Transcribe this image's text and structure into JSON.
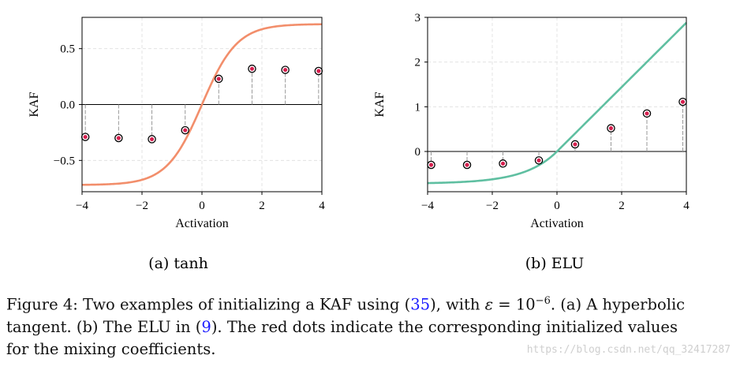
{
  "chart_data": [
    {
      "id": "left",
      "type": "scatter",
      "subcaption": "(a) tanh",
      "xlabel": "Activation",
      "ylabel": "KAF",
      "xlim": [
        -4,
        4
      ],
      "ylim": [
        -0.78,
        0.78
      ],
      "xticks": [
        -4,
        -2,
        0,
        2,
        4
      ],
      "xtick_labels": [
        "−4",
        "−2",
        "0",
        "2",
        "4"
      ],
      "yticks": [
        -0.5,
        0.0,
        0.5
      ],
      "ytick_labels": [
        "−0.5",
        "0.0",
        "0.5"
      ],
      "grid": true,
      "curve": {
        "name": "tanh",
        "color": "#f28e6b"
      },
      "dots": {
        "x": [
          -3.89,
          -2.78,
          -1.67,
          -0.56,
          0.56,
          1.67,
          2.78,
          3.89
        ],
        "y": [
          -0.29,
          -0.3,
          -0.31,
          -0.23,
          0.23,
          0.32,
          0.31,
          0.3
        ]
      }
    },
    {
      "id": "right",
      "type": "scatter",
      "subcaption": "(b) ELU",
      "xlabel": "Activation",
      "ylabel": "KAF",
      "xlim": [
        -4,
        4
      ],
      "ylim": [
        -0.9,
        3.0
      ],
      "xticks": [
        -4,
        -2,
        0,
        2,
        4
      ],
      "xtick_labels": [
        "−4",
        "−2",
        "0",
        "2",
        "4"
      ],
      "yticks": [
        0,
        1,
        2,
        3
      ],
      "ytick_labels": [
        "0",
        "1",
        "2",
        "3"
      ],
      "grid": true,
      "curve": {
        "name": "ELU",
        "color": "#5fbfa1"
      },
      "dots": {
        "x": [
          -3.89,
          -2.78,
          -1.67,
          -0.56,
          0.56,
          1.67,
          2.78,
          3.89
        ],
        "y": [
          -0.3,
          -0.3,
          -0.27,
          -0.2,
          0.16,
          0.52,
          0.85,
          1.11
        ]
      }
    }
  ],
  "caption": {
    "line1_pre": "Figure 4: Two examples of initializing a KAF using (",
    "line1_ref": "35",
    "line1_mid": "), with ",
    "line1_eps": "ε",
    "line1_eq": " = 10",
    "line1_exp": "−6",
    "line1_post": ". (a) A hyperbolic",
    "line2_pre": "tangent. (b) The ELU in (",
    "line2_ref": "9",
    "line2_post": "). The red dots indicate the corresponding initialized values",
    "line3": "for the mixing coefficients."
  },
  "watermark": "https://blog.csdn.net/qq_32417287",
  "colors": {
    "dot_fill": "#d6204f",
    "dot_edge": "#000000",
    "stem": "#999999",
    "grid": "#dddddd"
  }
}
